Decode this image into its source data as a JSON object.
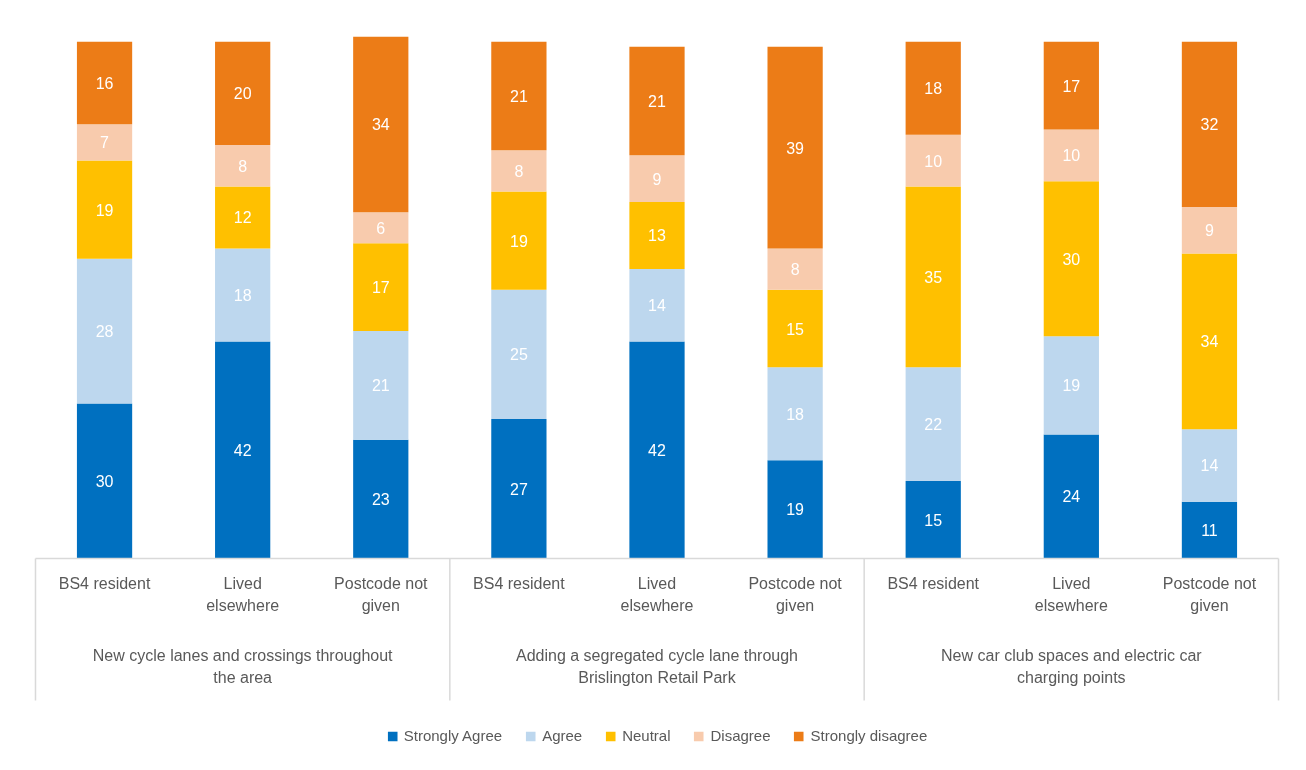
{
  "chart_data": {
    "type": "bar",
    "stacked": true,
    "data_labels": true,
    "legend": "bottom",
    "categories": [
      "BS4 resident",
      "Lived elsewhere",
      "Postcode not given",
      "BS4 resident",
      "Lived elsewhere",
      "Postcode not given",
      "BS4 resident",
      "Lived elsewhere",
      "Postcode not given"
    ],
    "annotations": [
      "New cycle lanes and crossings throughout the area",
      "Adding a segregated cycle lane through Brislington Retail Park",
      "New car club spaces and electric car charging points"
    ],
    "series": [
      {
        "name": "Strongly Agree",
        "color": "#0070c0",
        "values": [
          30,
          42,
          23,
          27,
          42,
          19,
          15,
          24,
          11
        ]
      },
      {
        "name": "Agree",
        "color": "#bdd7ee",
        "values": [
          28,
          18,
          21,
          25,
          14,
          18,
          22,
          19,
          14
        ]
      },
      {
        "name": "Neutral",
        "color": "#ffc000",
        "values": [
          19,
          12,
          17,
          19,
          13,
          15,
          35,
          30,
          34
        ]
      },
      {
        "name": "Disagree",
        "color": "#f8cbad",
        "values": [
          7,
          8,
          6,
          8,
          9,
          8,
          10,
          10,
          9
        ]
      },
      {
        "name": "Strongly disagree",
        "color": "#ec7c17",
        "values": [
          16,
          20,
          34,
          21,
          21,
          39,
          18,
          17,
          32
        ]
      }
    ]
  }
}
